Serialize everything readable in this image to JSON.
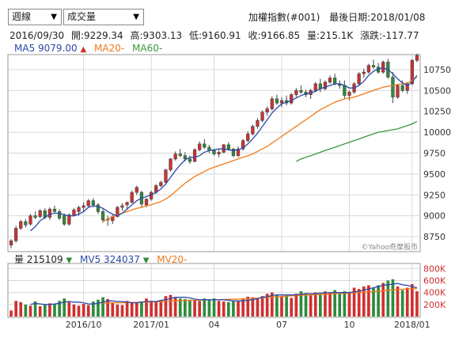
{
  "toolbar": {
    "period": "週線",
    "indicator": "成交量"
  },
  "header": {
    "title": "加權指數(#001)",
    "last_date_label": "最後日期:",
    "last_date": "2018/01/08"
  },
  "ohlc": {
    "date": "2016/09/30",
    "open_label": "開:",
    "open": "9229.34",
    "high_label": "高:",
    "high": "9303.13",
    "low_label": "低:",
    "low": "9160.91",
    "close_label": "收:",
    "close": "9166.85",
    "vol_label": "量:",
    "vol": "215.1K",
    "chg_label": "漲跌:",
    "chg": "-117.77"
  },
  "price_legend": {
    "ma5_label": "MA5",
    "ma5_value": "9079.00",
    "ma5_dir": "▲",
    "ma20_label": "MA20",
    "ma20_value": "-",
    "ma60_label": "MA60",
    "ma60_value": "-"
  },
  "vol_legend": {
    "vol_label": "量",
    "vol_value": "215109",
    "vol_dir": "▼",
    "mv5_label": "MV5",
    "mv5_value": "324037",
    "mv5_dir": "▼",
    "mv20_label": "MV20",
    "mv20_value": "-"
  },
  "watermark": "©Yahoo奇摩股市",
  "colors": {
    "up": "#d03030",
    "down": "#2e8b3a",
    "ma5": "#2a4aa8",
    "ma20": "#f07a1a",
    "ma60": "#3a9a3a",
    "grid": "#d8d8d8"
  },
  "chart_data": {
    "type": "candlestick",
    "price_axis": {
      "ticks": [
        8750,
        9000,
        9250,
        9500,
        9750,
        10000,
        10250,
        10500,
        10750
      ],
      "ylim": [
        8580,
        10920
      ]
    },
    "volume_axis": {
      "ticks": [
        "200K",
        "400K",
        "600K",
        "800K"
      ],
      "tick_values": [
        200,
        400,
        600,
        800
      ],
      "ylim": [
        0,
        870
      ]
    },
    "x_labels": [
      {
        "text": "2016/10",
        "i": 15
      },
      {
        "text": "2017/01",
        "i": 29
      },
      {
        "text": "04",
        "i": 42
      },
      {
        "text": "07",
        "i": 56
      },
      {
        "text": "10",
        "i": 70
      },
      {
        "text": "2018/01",
        "i": 83
      }
    ],
    "candles": [
      [
        8650,
        8720,
        8610,
        8700
      ],
      [
        8700,
        8880,
        8680,
        8850
      ],
      [
        8850,
        8950,
        8830,
        8930
      ],
      [
        8930,
        8960,
        8860,
        8890
      ],
      [
        8900,
        9020,
        8880,
        9000
      ],
      [
        9000,
        9050,
        8960,
        8980
      ],
      [
        8990,
        9080,
        8970,
        9060
      ],
      [
        9060,
        9090,
        8960,
        8980
      ],
      [
        8980,
        9100,
        8950,
        9080
      ],
      [
        9080,
        9120,
        9030,
        9050
      ],
      [
        9050,
        9080,
        8950,
        8970
      ],
      [
        9000,
        9030,
        8880,
        8900
      ],
      [
        8900,
        9030,
        8880,
        9010
      ],
      [
        9000,
        9090,
        8990,
        9070
      ],
      [
        9050,
        9120,
        9000,
        9100
      ],
      [
        9100,
        9160,
        9050,
        9120
      ],
      [
        9120,
        9200,
        9100,
        9180
      ],
      [
        9180,
        9210,
        9100,
        9130
      ],
      [
        9130,
        9150,
        9020,
        9050
      ],
      [
        9050,
        9080,
        8920,
        8950
      ],
      [
        8950,
        9000,
        8880,
        8960
      ],
      [
        8940,
        9010,
        8900,
        8990
      ],
      [
        8990,
        9120,
        8980,
        9100
      ],
      [
        9100,
        9150,
        9060,
        9120
      ],
      [
        9130,
        9170,
        9080,
        9160
      ],
      [
        9160,
        9300,
        9150,
        9280
      ],
      [
        9280,
        9360,
        9250,
        9340
      ],
      [
        9280,
        9300,
        9100,
        9140
      ],
      [
        9130,
        9210,
        9100,
        9200
      ],
      [
        9200,
        9300,
        9180,
        9280
      ],
      [
        9280,
        9380,
        9260,
        9360
      ],
      [
        9360,
        9420,
        9340,
        9400
      ],
      [
        9400,
        9560,
        9390,
        9550
      ],
      [
        9550,
        9690,
        9530,
        9680
      ],
      [
        9680,
        9770,
        9660,
        9740
      ],
      [
        9740,
        9800,
        9700,
        9720
      ],
      [
        9720,
        9760,
        9650,
        9680
      ],
      [
        9680,
        9720,
        9620,
        9650
      ],
      [
        9650,
        9810,
        9640,
        9790
      ],
      [
        9790,
        9890,
        9770,
        9860
      ],
      [
        9860,
        9920,
        9800,
        9820
      ],
      [
        9820,
        9850,
        9750,
        9780
      ],
      [
        9780,
        9800,
        9720,
        9740
      ],
      [
        9740,
        9790,
        9700,
        9760
      ],
      [
        9760,
        9860,
        9750,
        9850
      ],
      [
        9850,
        9880,
        9780,
        9800
      ],
      [
        9800,
        9810,
        9700,
        9720
      ],
      [
        9720,
        9830,
        9700,
        9800
      ],
      [
        9800,
        9920,
        9780,
        9900
      ],
      [
        9900,
        10010,
        9880,
        9980
      ],
      [
        9980,
        10090,
        9960,
        10070
      ],
      [
        10070,
        10170,
        10040,
        10140
      ],
      [
        10140,
        10260,
        10120,
        10240
      ],
      [
        10240,
        10310,
        10200,
        10280
      ],
      [
        10280,
        10430,
        10260,
        10400
      ],
      [
        10400,
        10450,
        10330,
        10350
      ],
      [
        10350,
        10420,
        10300,
        10380
      ],
      [
        10380,
        10440,
        10320,
        10350
      ],
      [
        10350,
        10470,
        10330,
        10450
      ],
      [
        10450,
        10530,
        10420,
        10500
      ],
      [
        10500,
        10560,
        10460,
        10480
      ],
      [
        10480,
        10510,
        10420,
        10450
      ],
      [
        10450,
        10520,
        10400,
        10500
      ],
      [
        10500,
        10600,
        10480,
        10580
      ],
      [
        10580,
        10640,
        10480,
        10520
      ],
      [
        10520,
        10620,
        10500,
        10600
      ],
      [
        10600,
        10680,
        10580,
        10650
      ],
      [
        10650,
        10700,
        10560,
        10580
      ],
      [
        10580,
        10620,
        10520,
        10560
      ],
      [
        10560,
        10620,
        10400,
        10440
      ],
      [
        10440,
        10500,
        10380,
        10480
      ],
      [
        10480,
        10600,
        10460,
        10580
      ],
      [
        10580,
        10720,
        10560,
        10700
      ],
      [
        10700,
        10760,
        10650,
        10720
      ],
      [
        10720,
        10820,
        10700,
        10800
      ],
      [
        10800,
        10870,
        10760,
        10780
      ],
      [
        10780,
        10830,
        10700,
        10720
      ],
      [
        10720,
        10860,
        10700,
        10840
      ],
      [
        10840,
        10880,
        10640,
        10660
      ],
      [
        10660,
        10720,
        10350,
        10420
      ],
      [
        10420,
        10580,
        10400,
        10560
      ],
      [
        10560,
        10620,
        10480,
        10500
      ],
      [
        10500,
        10600,
        10460,
        10580
      ],
      [
        10580,
        10880,
        10560,
        10860
      ],
      [
        10860,
        10940,
        10840,
        10920
      ]
    ],
    "volume": [
      100,
      260,
      240,
      200,
      180,
      250,
      170,
      190,
      220,
      210,
      260,
      300,
      240,
      200,
      180,
      210,
      190,
      250,
      280,
      320,
      290,
      230,
      200,
      190,
      260,
      240,
      230,
      250,
      300,
      260,
      240,
      270,
      340,
      360,
      320,
      300,
      290,
      280,
      270,
      260,
      300,
      280,
      300,
      260,
      250,
      240,
      270,
      250,
      300,
      330,
      320,
      300,
      340,
      380,
      400,
      360,
      330,
      350,
      310,
      380,
      420,
      390,
      360,
      400,
      380,
      420,
      400,
      440,
      380,
      420,
      400,
      480,
      460,
      500,
      520,
      480,
      520,
      560,
      600,
      620,
      500,
      440,
      480,
      540,
      420
    ],
    "ma5": [
      null,
      null,
      null,
      null,
      8820,
      8870,
      8940,
      8980,
      9020,
      9030,
      9030,
      9010,
      9000,
      9000,
      9020,
      9050,
      9100,
      9120,
      9110,
      9090,
      9050,
      9020,
      9000,
      9030,
      9080,
      9130,
      9180,
      9210,
      9230,
      9250,
      9280,
      9320,
      9380,
      9460,
      9540,
      9610,
      9670,
      9700,
      9700,
      9720,
      9760,
      9780,
      9790,
      9800,
      9800,
      9790,
      9780,
      9790,
      9810,
      9860,
      9920,
      9990,
      10070,
      10150,
      10230,
      10290,
      10340,
      10360,
      10380,
      10410,
      10440,
      10460,
      10470,
      10490,
      10520,
      10540,
      10560,
      10580,
      10580,
      10560,
      10530,
      10530,
      10560,
      10610,
      10680,
      10730,
      10760,
      10770,
      10750,
      10700,
      10640,
      10590,
      10560,
      10600,
      10680
    ],
    "ma20": [
      null,
      null,
      null,
      null,
      null,
      null,
      null,
      null,
      null,
      null,
      null,
      null,
      null,
      null,
      null,
      null,
      null,
      null,
      null,
      8930,
      8960,
      8990,
      9010,
      9030,
      9050,
      9070,
      9090,
      9100,
      9120,
      9130,
      9150,
      9170,
      9200,
      9240,
      9290,
      9340,
      9390,
      9430,
      9470,
      9500,
      9530,
      9560,
      9580,
      9600,
      9620,
      9640,
      9660,
      9680,
      9700,
      9720,
      9740,
      9770,
      9800,
      9830,
      9870,
      9910,
      9950,
      9990,
      10030,
      10070,
      10110,
      10150,
      10190,
      10230,
      10270,
      10300,
      10330,
      10360,
      10380,
      10400,
      10410,
      10420,
      10440,
      10460,
      10480,
      10500,
      10520,
      10540,
      10550,
      10560,
      10570,
      10580,
      10590,
      10620,
      10660
    ],
    "ma60": [
      null,
      null,
      null,
      null,
      null,
      null,
      null,
      null,
      null,
      null,
      null,
      null,
      null,
      null,
      null,
      null,
      null,
      null,
      null,
      null,
      null,
      null,
      null,
      null,
      null,
      null,
      null,
      null,
      null,
      null,
      null,
      null,
      null,
      null,
      null,
      null,
      null,
      null,
      null,
      null,
      null,
      null,
      null,
      null,
      null,
      null,
      null,
      null,
      null,
      null,
      null,
      null,
      null,
      null,
      null,
      null,
      null,
      null,
      null,
      9650,
      9680,
      9700,
      9720,
      9740,
      9760,
      9780,
      9800,
      9820,
      9840,
      9860,
      9880,
      9900,
      9920,
      9940,
      9960,
      9980,
      10000,
      10010,
      10020,
      10030,
      10040,
      10060,
      10080,
      10100,
      10130
    ],
    "mv5": [
      null,
      null,
      null,
      null,
      200,
      220,
      210,
      200,
      200,
      210,
      220,
      240,
      250,
      240,
      240,
      230,
      210,
      210,
      220,
      240,
      260,
      260,
      250,
      250,
      240,
      230,
      230,
      240,
      250,
      250,
      250,
      270,
      280,
      300,
      320,
      320,
      320,
      310,
      290,
      280,
      280,
      280,
      280,
      280,
      280,
      270,
      260,
      260,
      260,
      270,
      280,
      300,
      320,
      330,
      350,
      360,
      360,
      360,
      360,
      360,
      370,
      380,
      380,
      380,
      390,
      390,
      400,
      400,
      400,
      400,
      400,
      410,
      420,
      440,
      460,
      480,
      500,
      520,
      530,
      540,
      550,
      530,
      520,
      500,
      480
    ],
    "mv20": [
      null,
      null,
      null,
      null,
      null,
      null,
      null,
      null,
      null,
      null,
      null,
      null,
      null,
      null,
      null,
      null,
      null,
      null,
      null,
      220,
      225,
      230,
      230,
      230,
      232,
      234,
      236,
      238,
      240,
      242,
      244,
      248,
      252,
      256,
      260,
      264,
      268,
      270,
      272,
      274,
      276,
      278,
      280,
      282,
      284,
      286,
      288,
      290,
      292,
      296,
      300,
      304,
      310,
      316,
      322,
      328,
      334,
      340,
      344,
      348,
      352,
      356,
      360,
      364,
      368,
      372,
      376,
      380,
      384,
      388,
      392,
      396,
      400,
      405,
      410,
      415,
      420,
      428,
      436,
      444,
      450,
      455,
      460,
      462,
      464
    ]
  }
}
